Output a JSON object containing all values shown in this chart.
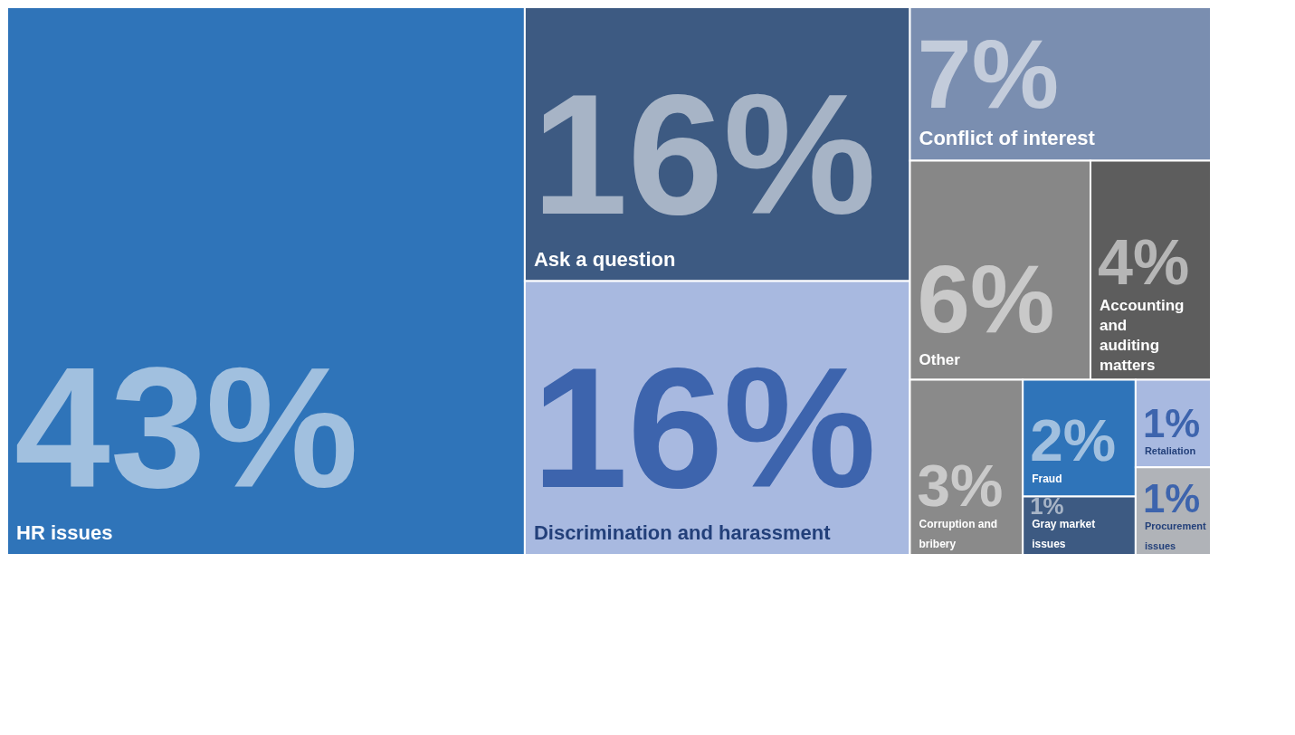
{
  "chart_data": {
    "type": "other",
    "categories": [
      "HR issues",
      "Ask a question",
      "Discrimination and harassment",
      "Conflict of interest",
      "Other",
      "Accounting and auditing matters",
      "Corruption and bribery",
      "Fraud",
      "Gray market issues",
      "Retaliation",
      "Procurement issues"
    ],
    "values": [
      43,
      16,
      16,
      7,
      6,
      4,
      3,
      2,
      1,
      1,
      1
    ],
    "value_labels": [
      "43%",
      "16%",
      "16%",
      "7%",
      "6%",
      "4%",
      "3%",
      "2%",
      "1%",
      "1%",
      "1%"
    ],
    "colors": [
      "#2f74b9",
      "#3d5a82",
      "#a8b9e0",
      "#7a8eb0",
      "#878787",
      "#5d5d5d",
      "#8a8a8a",
      "#2f74b9",
      "#3d5a82",
      "#a8b9e0",
      "#b0b3b8"
    ]
  }
}
